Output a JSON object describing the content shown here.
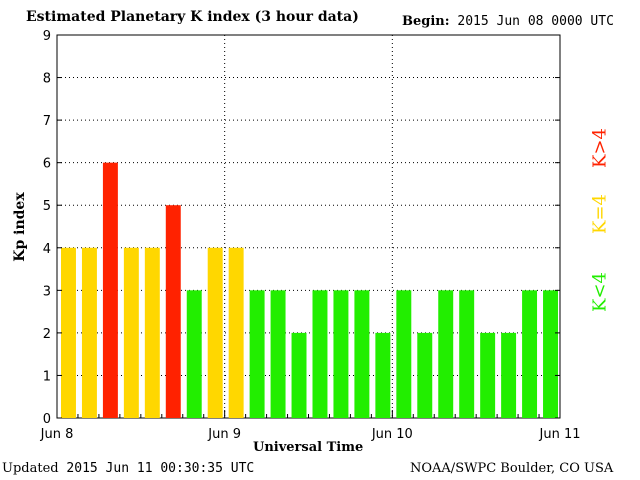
{
  "chart_data": {
    "type": "bar",
    "title": "Estimated Planetary K index (3 hour data)",
    "begin_label": "Begin:",
    "begin_value": "2015 Jun 08 0000 UTC",
    "xlabel": "Universal Time",
    "ylabel": "Kp index",
    "ylim": [
      0,
      9
    ],
    "yticks": [
      "0",
      "1",
      "2",
      "3",
      "4",
      "5",
      "6",
      "7",
      "8",
      "9"
    ],
    "xticks": [
      "Jun 8",
      "Jun 9",
      "Jun 10",
      "Jun 11"
    ],
    "grid": true,
    "values": [
      4,
      4,
      6,
      4,
      4,
      5,
      3,
      4,
      4,
      3,
      3,
      2,
      3,
      3,
      3,
      2,
      3,
      2,
      3,
      3,
      2,
      2,
      3,
      3
    ],
    "colors": {
      "low": "#22ee00",
      "mid": "#ffd700",
      "high": "#ff2200"
    },
    "legend": [
      {
        "label": "K<4",
        "color": "#22ee00"
      },
      {
        "label": "K=4",
        "color": "#ffd700"
      },
      {
        "label": "K>4",
        "color": "#ff2200"
      }
    ],
    "legend_position": "right"
  },
  "footer": {
    "updated_label": "Updated",
    "updated_value": "2015 Jun 11 00:30:35 UTC",
    "credit": "NOAA/SWPC Boulder, CO USA"
  }
}
